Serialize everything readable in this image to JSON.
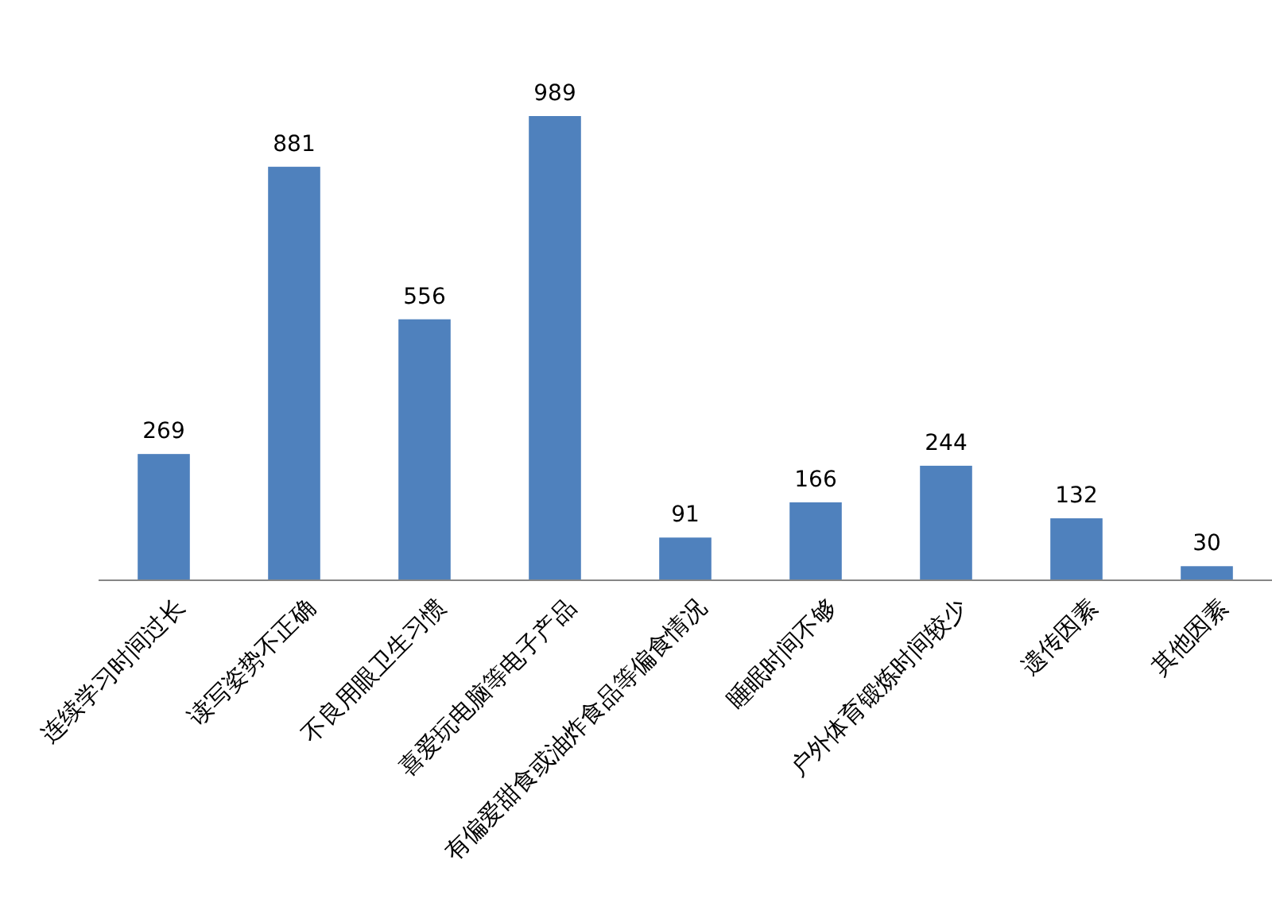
{
  "chart_data": {
    "type": "bar",
    "categories": [
      "连续学习时间过长",
      "读写姿势不正确",
      "不良用眼卫生习惯",
      "喜爱玩电脑等电子产品",
      "有偏爱甜食或油炸食品等偏食情况",
      "睡眠时间不够",
      "户外体育锻炼时间较少",
      "遗传因素",
      "其他因素"
    ],
    "values": [
      269,
      881,
      556,
      989,
      91,
      166,
      244,
      132,
      30
    ],
    "color": "#4f81bd",
    "data_labels": true
  }
}
